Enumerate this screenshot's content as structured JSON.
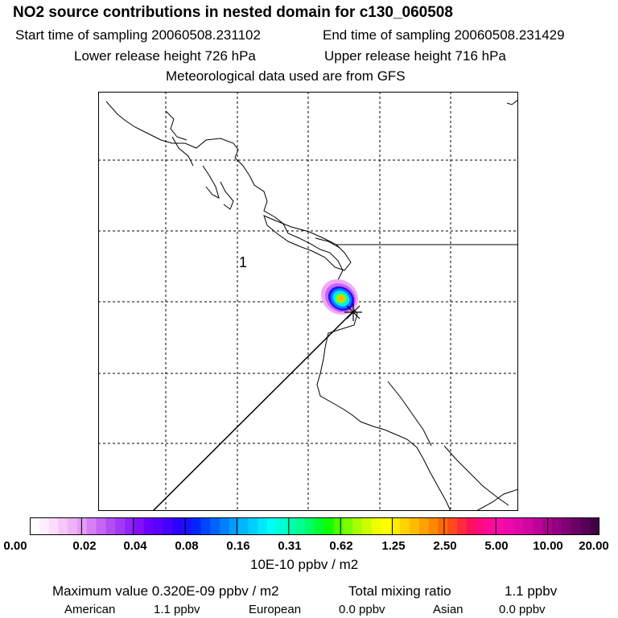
{
  "header": {
    "title": "NO2 source contributions in nested domain for c130_060508",
    "start_label": "Start time of sampling 20060508.231102",
    "end_label": "End time of sampling 20060508.231429",
    "lower_label": "Lower release height  726 hPa",
    "upper_label": "Upper release height  716 hPa",
    "met_label": "Meteorological data used are from GFS"
  },
  "map": {
    "flight_label": "1"
  },
  "colorbar": {
    "ticks": [
      "0.00",
      "0.02",
      "0.04",
      "0.08",
      "0.16",
      "0.31",
      "0.62",
      "1.25",
      "2.50",
      "5.00",
      "10.00",
      "20.00"
    ],
    "unit": "10E-10 ppbv / m2",
    "colors": [
      "#ffffff",
      "#ffeeff",
      "#fcdcfc",
      "#f5c6f8",
      "#eeb2f6",
      "#e39cf3",
      "#d47ff3",
      "#c466f3",
      "#b24ff3",
      "#a23af5",
      "#9124f8",
      "#8111fb",
      "#6b00ff",
      "#5a00ff",
      "#4600ff",
      "#2f00ff",
      "#1a10ff",
      "#0026ff",
      "#0045ff",
      "#0062ff",
      "#0080ff",
      "#009cff",
      "#00b6ff",
      "#00cfff",
      "#00e8ff",
      "#00fff2",
      "#00ffd6",
      "#00ffb5",
      "#00ff8f",
      "#00ff63",
      "#00ff2e",
      "#10ff00",
      "#48ff00",
      "#7aff00",
      "#a8ff00",
      "#ccff00",
      "#eeff00",
      "#ffff00",
      "#ffea00",
      "#ffd200",
      "#ffbb00",
      "#ffa200",
      "#ff8800",
      "#ff6a00",
      "#ff4a1e",
      "#ff2a3c",
      "#ff1060",
      "#ff0a80",
      "#ff0a98",
      "#f70aa8",
      "#ec0aaa",
      "#de08a6",
      "#cf06a0",
      "#bd0498",
      "#aa028e",
      "#950083",
      "#800076",
      "#6b0068",
      "#560058",
      "#420046"
    ]
  },
  "stats": {
    "max_label": "Maximum value  0.320E-09 ppbv / m2",
    "total_label": "Total mixing ratio",
    "total_value": "1.1 ppbv"
  },
  "sources": [
    {
      "name": "American",
      "value": "1.1 ppbv"
    },
    {
      "name": "European",
      "value": "0.0 ppbv"
    },
    {
      "name": "Asian",
      "value": "0.0 ppbv"
    }
  ]
}
